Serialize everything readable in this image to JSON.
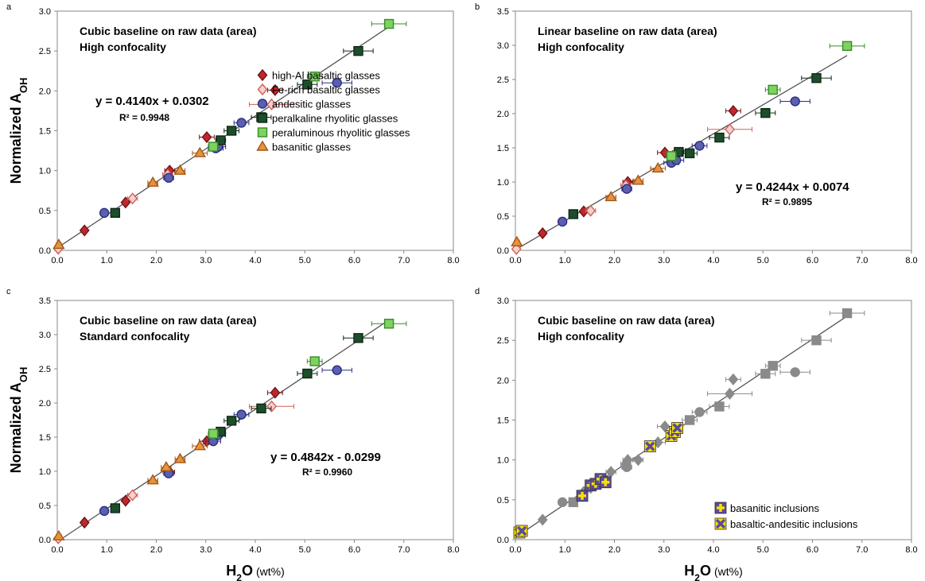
{
  "chart_data": [
    {
      "type": "scatter",
      "panel": "a",
      "title": [
        "Cubic baseline on raw data (area)",
        "High confocality"
      ],
      "ylabel": {
        "text": "Normalized A",
        "sub": "OH"
      },
      "xlim": [
        0,
        8
      ],
      "ylim": [
        0,
        3
      ],
      "xticks": [
        {
          "value": 0,
          "label": "0.0"
        },
        {
          "value": 1,
          "label": "1.0"
        },
        {
          "value": 2,
          "label": "2.0"
        },
        {
          "value": 3,
          "label": "3.0"
        },
        {
          "value": 4,
          "label": "4.0"
        },
        {
          "value": 5,
          "label": "5.0"
        },
        {
          "value": 6,
          "label": "6.0"
        },
        {
          "value": 7,
          "label": "7.0"
        },
        {
          "value": 8,
          "label": "8.0"
        }
      ],
      "yticks": [
        {
          "value": 0,
          "label": "0.0"
        },
        {
          "value": 0.5,
          "label": "0.5"
        },
        {
          "value": 1,
          "label": "1.0"
        },
        {
          "value": 1.5,
          "label": "1.5"
        },
        {
          "value": 2,
          "label": "2.0"
        },
        {
          "value": 2.5,
          "label": "2.5"
        },
        {
          "value": 3,
          "label": "3.0"
        }
      ],
      "fit": {
        "slope": 0.414,
        "intercept": 0.0302,
        "label": "y = 0.4140x + 0.0302",
        "r2_label": "R² = 0.9948"
      },
      "legend": "center right",
      "series": [
        {
          "name": "high-Al basaltic glasses",
          "marker": "diamond",
          "color": "#c0272d",
          "edgecolor": "#6e1515",
          "x": [
            0.55,
            1.38,
            2.27,
            3.02,
            4.4
          ],
          "y": [
            0.25,
            0.6,
            1.0,
            1.42,
            2.01
          ],
          "xerr": [
            0.05,
            0.05,
            0.1,
            0.15,
            0.15
          ]
        },
        {
          "name": "Fe-rich basaltic glasses",
          "marker": "diamond",
          "color": "#f6d0cc",
          "edgecolor": "#d0605a",
          "x": [
            0.02,
            1.52,
            2.23,
            4.33
          ],
          "y": [
            0.02,
            0.65,
            0.95,
            1.83
          ],
          "xerr": [
            0.05,
            0.1,
            0.1,
            0.45
          ]
        },
        {
          "name": "andesitic glasses",
          "marker": "circle",
          "color": "#5a5fb0",
          "edgecolor": "#2b2e80",
          "x": [
            0.95,
            2.25,
            3.2,
            3.25,
            3.72,
            5.65
          ],
          "y": [
            0.47,
            0.91,
            1.28,
            1.3,
            1.6,
            2.1
          ],
          "xerr": [
            0.05,
            0.1,
            0.15,
            0.15,
            0.15,
            0.3
          ]
        },
        {
          "name": "peralkaline rhyolitic glasses",
          "marker": "square",
          "color": "#1e4d2b",
          "edgecolor": "#0d2a14",
          "x": [
            1.17,
            3.3,
            3.52,
            4.12,
            5.05,
            6.08
          ],
          "y": [
            0.47,
            1.38,
            1.5,
            1.67,
            2.08,
            2.5
          ],
          "xerr": [
            0.05,
            0.1,
            0.15,
            0.2,
            0.2,
            0.3
          ]
        },
        {
          "name": "peraluminous rhyolitic glasses",
          "marker": "square",
          "color": "#7dd35f",
          "edgecolor": "#3a8a2a",
          "x": [
            3.15,
            5.2,
            6.7
          ],
          "y": [
            1.3,
            2.18,
            2.84
          ],
          "xerr": [
            0.1,
            0.15,
            0.35
          ]
        },
        {
          "name": "basanitic glasses",
          "marker": "triangle",
          "color": "#e8923a",
          "edgecolor": "#a0561a",
          "x": [
            0.03,
            1.93,
            2.48,
            2.88
          ],
          "y": [
            0.07,
            0.85,
            1.0,
            1.22
          ],
          "xerr": [
            0.05,
            0.1,
            0.1,
            0.15
          ]
        }
      ]
    },
    {
      "type": "scatter",
      "panel": "b",
      "title": [
        "Linear baseline on raw data (area)",
        "High confocality"
      ],
      "xlim": [
        0,
        8
      ],
      "ylim": [
        0,
        3.5
      ],
      "xticks": [
        {
          "value": 0,
          "label": "0.0"
        },
        {
          "value": 1,
          "label": "1.0"
        },
        {
          "value": 2,
          "label": "2.0"
        },
        {
          "value": 3,
          "label": "3.0"
        },
        {
          "value": 4,
          "label": "4.0"
        },
        {
          "value": 5,
          "label": "5.0"
        },
        {
          "value": 6,
          "label": "6.0"
        },
        {
          "value": 7,
          "label": "7.0"
        },
        {
          "value": 8,
          "label": "8.0"
        }
      ],
      "yticks": [
        {
          "value": 0,
          "label": "0.0"
        },
        {
          "value": 0.5,
          "label": "0.5"
        },
        {
          "value": 1,
          "label": "1.0"
        },
        {
          "value": 1.5,
          "label": "1.5"
        },
        {
          "value": 2,
          "label": "2.0"
        },
        {
          "value": 2.5,
          "label": "2.5"
        },
        {
          "value": 3,
          "label": "3.0"
        },
        {
          "value": 3.5,
          "label": "3.5"
        }
      ],
      "fit": {
        "slope": 0.4244,
        "intercept": 0.0074,
        "label": "y = 0.4244x + 0.0074",
        "r2_label": "R² = 0.9895"
      },
      "series": [
        {
          "marker": "diamond",
          "color": "#c0272d",
          "edgecolor": "#6e1515",
          "x": [
            0.55,
            1.38,
            2.27,
            3.02,
            4.4
          ],
          "y": [
            0.25,
            0.57,
            1.0,
            1.43,
            2.04
          ],
          "xerr": [
            0.05,
            0.05,
            0.1,
            0.15,
            0.15
          ]
        },
        {
          "marker": "diamond",
          "color": "#f6d0cc",
          "edgecolor": "#d0605a",
          "x": [
            0.02,
            1.52,
            2.23,
            4.33
          ],
          "y": [
            0.02,
            0.58,
            0.95,
            1.77
          ],
          "xerr": [
            0.05,
            0.1,
            0.1,
            0.45
          ]
        },
        {
          "marker": "circle",
          "color": "#5a5fb0",
          "edgecolor": "#2b2e80",
          "x": [
            0.95,
            2.25,
            3.15,
            3.25,
            3.72,
            5.65
          ],
          "y": [
            0.42,
            0.9,
            1.28,
            1.32,
            1.53,
            2.18
          ],
          "xerr": [
            0.05,
            0.1,
            0.15,
            0.15,
            0.15,
            0.3
          ]
        },
        {
          "marker": "square",
          "color": "#1e4d2b",
          "edgecolor": "#0d2a14",
          "x": [
            1.17,
            3.3,
            3.52,
            4.12,
            5.05,
            6.08
          ],
          "y": [
            0.53,
            1.44,
            1.42,
            1.65,
            2.01,
            2.52
          ],
          "xerr": [
            0.05,
            0.1,
            0.15,
            0.2,
            0.2,
            0.3
          ]
        },
        {
          "marker": "square",
          "color": "#7dd35f",
          "edgecolor": "#3a8a2a",
          "x": [
            3.15,
            5.2,
            6.7
          ],
          "y": [
            1.38,
            2.35,
            2.99
          ],
          "xerr": [
            0.1,
            0.15,
            0.35
          ]
        },
        {
          "marker": "triangle",
          "color": "#e8923a",
          "edgecolor": "#a0561a",
          "x": [
            0.03,
            1.93,
            2.48,
            2.88
          ],
          "y": [
            0.12,
            0.78,
            1.02,
            1.2
          ],
          "xerr": [
            0.05,
            0.1,
            0.1,
            0.15
          ]
        }
      ]
    },
    {
      "type": "scatter",
      "panel": "c",
      "title": [
        "Cubic baseline on raw data (area)",
        "Standard confocality"
      ],
      "ylabel": {
        "text": "Normalized A",
        "sub": "OH"
      },
      "xlabel": {
        "text": "H",
        "sub": "2",
        "rest": "O",
        "unit": "(wt%)"
      },
      "xlim": [
        0,
        8
      ],
      "ylim": [
        0,
        3.5
      ],
      "xticks": [
        {
          "value": 0,
          "label": "0.0"
        },
        {
          "value": 1,
          "label": "1.0"
        },
        {
          "value": 2,
          "label": "2.0"
        },
        {
          "value": 3,
          "label": "3.0"
        },
        {
          "value": 4,
          "label": "4.0"
        },
        {
          "value": 5,
          "label": "5.0"
        },
        {
          "value": 6,
          "label": "6.0"
        },
        {
          "value": 7,
          "label": "7.0"
        },
        {
          "value": 8,
          "label": "8.0"
        }
      ],
      "yticks": [
        {
          "value": 0,
          "label": "0.0"
        },
        {
          "value": 0.5,
          "label": "0.5"
        },
        {
          "value": 1,
          "label": "1.0"
        },
        {
          "value": 1.5,
          "label": "1.5"
        },
        {
          "value": 2,
          "label": "2.0"
        },
        {
          "value": 2.5,
          "label": "2.5"
        },
        {
          "value": 3,
          "label": "3.0"
        },
        {
          "value": 3.5,
          "label": "3.5"
        }
      ],
      "fit": {
        "slope": 0.4842,
        "intercept": -0.0299,
        "label": "y = 0.4842x - 0.0299",
        "r2_label": "R² = 0.9960"
      },
      "series": [
        {
          "marker": "diamond",
          "color": "#c0272d",
          "edgecolor": "#6e1515",
          "x": [
            0.55,
            1.38,
            2.27,
            3.02,
            4.4
          ],
          "y": [
            0.25,
            0.57,
            0.99,
            1.44,
            2.15
          ],
          "xerr": [
            0.05,
            0.05,
            0.1,
            0.15,
            0.15
          ]
        },
        {
          "marker": "diamond",
          "color": "#f6d0cc",
          "edgecolor": "#d0605a",
          "x": [
            0.02,
            1.52,
            2.23,
            4.33
          ],
          "y": [
            0.02,
            0.65,
            1.0,
            1.95
          ],
          "xerr": [
            0.05,
            0.1,
            0.1,
            0.45
          ]
        },
        {
          "marker": "circle",
          "color": "#5a5fb0",
          "edgecolor": "#2b2e80",
          "x": [
            0.95,
            2.25,
            3.15,
            3.25,
            3.72,
            5.65
          ],
          "y": [
            0.42,
            0.97,
            1.44,
            1.53,
            1.83,
            2.48
          ],
          "xerr": [
            0.05,
            0.1,
            0.15,
            0.15,
            0.15,
            0.3
          ]
        },
        {
          "marker": "square",
          "color": "#1e4d2b",
          "edgecolor": "#0d2a14",
          "x": [
            1.17,
            3.3,
            3.52,
            4.12,
            5.05,
            6.08
          ],
          "y": [
            0.46,
            1.58,
            1.74,
            1.92,
            2.43,
            2.95
          ],
          "xerr": [
            0.05,
            0.1,
            0.15,
            0.2,
            0.2,
            0.3
          ]
        },
        {
          "marker": "square",
          "color": "#7dd35f",
          "edgecolor": "#3a8a2a",
          "x": [
            3.15,
            5.2,
            6.7
          ],
          "y": [
            1.55,
            2.61,
            3.16
          ],
          "xerr": [
            0.1,
            0.15,
            0.35
          ]
        },
        {
          "marker": "triangle",
          "color": "#e8923a",
          "edgecolor": "#a0561a",
          "x": [
            0.03,
            1.93,
            2.2,
            2.48,
            2.88
          ],
          "y": [
            0.05,
            0.87,
            1.06,
            1.18,
            1.37
          ],
          "xerr": [
            0.05,
            0.1,
            0.1,
            0.1,
            0.15
          ]
        }
      ]
    },
    {
      "type": "scatter",
      "panel": "d",
      "title": [
        "Cubic baseline on raw data (area)",
        "High confocality"
      ],
      "xlabel": {
        "text": "H",
        "sub": "2",
        "rest": "O",
        "unit": "(wt%)"
      },
      "xlim": [
        0,
        8
      ],
      "ylim": [
        0,
        3
      ],
      "xticks": [
        {
          "value": 0,
          "label": "0.0"
        },
        {
          "value": 1,
          "label": "1.0"
        },
        {
          "value": 2,
          "label": "2.0"
        },
        {
          "value": 3,
          "label": "3.0"
        },
        {
          "value": 4,
          "label": "4.0"
        },
        {
          "value": 5,
          "label": "5.0"
        },
        {
          "value": 6,
          "label": "6.0"
        },
        {
          "value": 7,
          "label": "7.0"
        },
        {
          "value": 8,
          "label": "8.0"
        }
      ],
      "yticks": [
        {
          "value": 0,
          "label": "0.0"
        },
        {
          "value": 0.5,
          "label": "0.5"
        },
        {
          "value": 1,
          "label": "1.0"
        },
        {
          "value": 1.5,
          "label": "1.5"
        },
        {
          "value": 2,
          "label": "2.0"
        },
        {
          "value": 2.5,
          "label": "2.5"
        },
        {
          "value": 3,
          "label": "3.0"
        }
      ],
      "fit": {
        "slope": 0.414,
        "intercept": 0.0302
      },
      "legend": "lower right",
      "series": [
        {
          "marker": "diamond",
          "color": "#8a8a8a",
          "edgecolor": "#8a8a8a",
          "x": [
            0.55,
            1.38,
            2.27,
            3.02,
            4.4,
            1.52,
            2.23,
            4.33,
            1.93,
            2.48,
            2.88
          ],
          "y": [
            0.25,
            0.6,
            1.0,
            1.42,
            2.01,
            0.65,
            0.95,
            1.83,
            0.85,
            1.0,
            1.22
          ],
          "xerr": [
            0.05,
            0.05,
            0.1,
            0.15,
            0.15,
            0.1,
            0.1,
            0.45,
            0.1,
            0.1,
            0.15
          ]
        },
        {
          "marker": "circle",
          "color": "#8a8a8a",
          "edgecolor": "#8a8a8a",
          "x": [
            0.95,
            2.25,
            3.72,
            5.65
          ],
          "y": [
            0.47,
            0.91,
            1.6,
            2.1
          ],
          "xerr": [
            0.05,
            0.1,
            0.15,
            0.3
          ]
        },
        {
          "marker": "square",
          "color": "#8a8a8a",
          "edgecolor": "#8a8a8a",
          "x": [
            1.17,
            3.52,
            4.12,
            5.05,
            5.2,
            6.08,
            6.7
          ],
          "y": [
            0.47,
            1.5,
            1.67,
            2.08,
            2.18,
            2.5,
            2.84
          ],
          "xerr": [
            0.05,
            0.15,
            0.2,
            0.2,
            0.15,
            0.3,
            0.35
          ]
        },
        {
          "name": "basanitic inclusions",
          "marker": "plus",
          "color": "#5b4a9e",
          "edgecolor": "#f5e000",
          "x": [
            1.35,
            1.52,
            1.62,
            1.72,
            1.82
          ],
          "y": [
            0.55,
            0.68,
            0.7,
            0.76,
            0.72
          ]
        },
        {
          "name": "basaltic-andesitic inclusions",
          "marker": "xcross",
          "color": "#f5e000",
          "edgecolor": "#5b4a9e",
          "x": [
            0.08,
            0.13,
            2.72,
            3.15,
            3.22,
            3.27
          ],
          "y": [
            0.09,
            0.11,
            1.17,
            1.3,
            1.35,
            1.4
          ]
        }
      ]
    }
  ]
}
